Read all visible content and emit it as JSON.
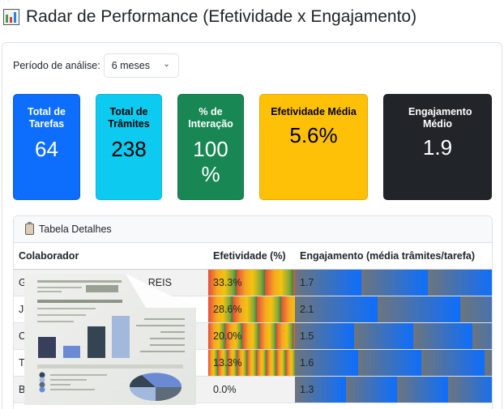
{
  "header": {
    "title": "Radar de Performance (Efetividade x Engajamento)",
    "icon": "bar-chart-icon"
  },
  "filter": {
    "label": "Período de análise:",
    "selected": "6 meses"
  },
  "kpis": [
    {
      "title": "Total de Tarefas",
      "value": "64",
      "color": "#0d6efd"
    },
    {
      "title": "Total de Trâmites",
      "value": "238",
      "color": "#0dcaf0"
    },
    {
      "title": "% de Interação",
      "value": "100 %",
      "color": "#198754"
    },
    {
      "title": "Efetividade Média",
      "value": "5.6%",
      "color": "#ffc107"
    },
    {
      "title": "Engajamento Médio",
      "value": "1.9",
      "color": "#212529"
    }
  ],
  "details": {
    "title": "Tabela Detalhes",
    "icon": "clipboard-icon",
    "columns": [
      "Colaborador",
      "Efetividade (%)",
      "Engajamento (média trâmites/tarefa)"
    ],
    "rows": [
      {
        "name": "G",
        "name_suffix": "REIS",
        "efetividade": "33.3%",
        "engajamento": "1.7"
      },
      {
        "name": "JO",
        "name_suffix": "",
        "efetividade": "28.6%",
        "engajamento": "2.1"
      },
      {
        "name": "C",
        "name_suffix": "",
        "efetividade": "20.0%",
        "engajamento": "1.5"
      },
      {
        "name": "T",
        "name_suffix": "",
        "efetividade": "13.3%",
        "engajamento": "1.6"
      },
      {
        "name": "B",
        "name_suffix": "",
        "efetividade": "0.0%",
        "engajamento": "1.3"
      }
    ]
  },
  "overlay": {
    "icon": "report-document-icon"
  }
}
